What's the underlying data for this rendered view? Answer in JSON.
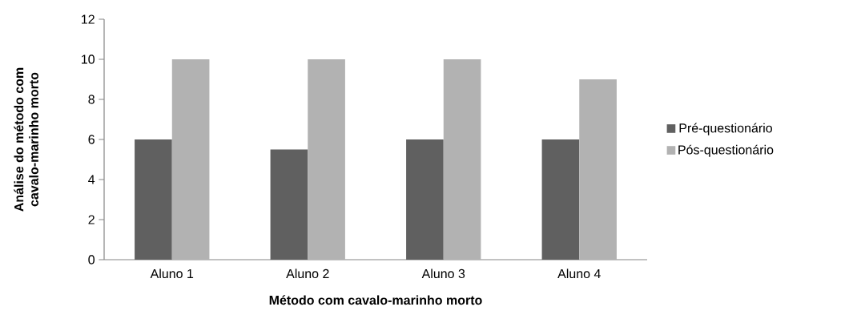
{
  "chart_data": {
    "type": "bar",
    "xlabel": "Método com cavalo-marinho morto",
    "ylabel": "Análise do método com cavalo-marinho morto",
    "categories": [
      "Aluno 1",
      "Aluno 2",
      "Aluno 3",
      "Aluno 4"
    ],
    "series": [
      {
        "name": "Pré-questionário",
        "color": "#606060",
        "values": [
          6,
          5.5,
          6,
          6
        ]
      },
      {
        "name": "Pós-questionário",
        "color": "#b2b2b2",
        "values": [
          10,
          10,
          10,
          9
        ]
      }
    ],
    "ylim": [
      0,
      12
    ],
    "yticks": [
      0,
      2,
      4,
      6,
      8,
      10,
      12
    ],
    "grid": false,
    "legend": "right"
  }
}
